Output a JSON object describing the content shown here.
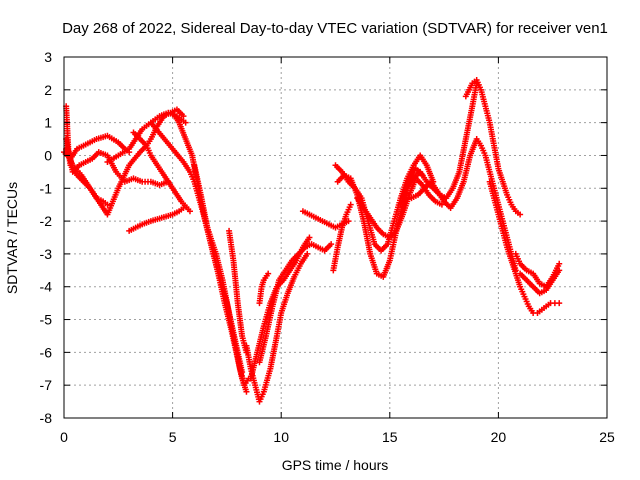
{
  "chart_data": {
    "type": "scatter",
    "title": "Day 268 of 2022, Sidereal Day-to-day VTEC variation (SDTVAR) for receiver ven1",
    "xlabel": "GPS time / hours",
    "ylabel": "SDTVAR / TECUs",
    "xlim": [
      0,
      25
    ],
    "ylim": [
      -8,
      3
    ],
    "xticks": [
      "0",
      "5",
      "10",
      "15",
      "20",
      "25"
    ],
    "yticks": [
      "3",
      "2",
      "1",
      "0",
      "-1",
      "-2",
      "-3",
      "-4",
      "-5",
      "-6",
      "-7",
      "-8"
    ],
    "xtick_values": [
      0,
      5,
      10,
      15,
      20,
      25
    ],
    "ytick_values": [
      3,
      2,
      1,
      0,
      -1,
      -2,
      -3,
      -4,
      -5,
      -6,
      -7,
      -8
    ],
    "grid": true,
    "marker": "+",
    "color": "#ff0000",
    "series": [
      {
        "x": [
          0.1,
          0.2,
          0.4,
          0.7,
          1.0,
          1.3,
          1.6,
          2.0,
          2.4,
          2.8,
          3.2,
          3.6,
          4.0,
          4.4,
          4.8
        ],
        "y": [
          1.5,
          0.2,
          -0.5,
          -0.3,
          -0.2,
          -0.1,
          0.1,
          0.0,
          -0.5,
          -0.8,
          -0.7,
          -0.8,
          -0.8,
          -0.9,
          -0.8
        ]
      },
      {
        "x": [
          0.1,
          0.3,
          0.6,
          0.9,
          1.2,
          1.5,
          1.8,
          2.0
        ],
        "y": [
          0.5,
          -0.3,
          -0.6,
          -0.8,
          -1.0,
          -1.3,
          -1.4,
          -1.5
        ]
      },
      {
        "x": [
          0.1,
          0.4,
          0.8,
          1.2,
          1.6,
          2.0,
          2.5,
          3.0,
          3.5,
          3.8,
          4.0,
          4.3,
          4.6,
          4.9,
          5.2,
          5.5
        ],
        "y": [
          0.2,
          -0.3,
          -0.6,
          -1.0,
          -1.4,
          -1.8,
          -1.0,
          -0.3,
          0.1,
          0.3,
          0.5,
          0.9,
          1.2,
          1.3,
          1.4,
          1.2
        ]
      },
      {
        "x": [
          0.0,
          0.3,
          0.6,
          0.9,
          1.2,
          1.5,
          2.0,
          2.5,
          2.8,
          3.0
        ],
        "y": [
          0.1,
          -0.1,
          0.2,
          0.3,
          0.4,
          0.5,
          0.6,
          0.4,
          0.2,
          0.1
        ]
      },
      {
        "x": [
          2.0,
          2.5,
          3.0,
          3.3,
          3.6,
          4.0,
          4.4,
          4.8,
          5.2,
          5.6
        ],
        "y": [
          -0.2,
          0.0,
          0.2,
          0.5,
          0.8,
          1.0,
          1.2,
          1.3,
          1.2,
          1.0
        ]
      },
      {
        "x": [
          3.0,
          3.3,
          3.6,
          4.0,
          4.5,
          5.0,
          5.3,
          5.5
        ],
        "y": [
          -2.3,
          -2.2,
          -2.1,
          -2.0,
          -1.9,
          -1.8,
          -1.7,
          -1.6
        ]
      },
      {
        "x": [
          3.2,
          3.5,
          3.8,
          4.0,
          4.3,
          4.6,
          5.0,
          5.4,
          5.8
        ],
        "y": [
          0.7,
          0.5,
          0.3,
          0.0,
          -0.3,
          -0.6,
          -1.0,
          -1.4,
          -1.7
        ]
      },
      {
        "x": [
          4.0,
          4.5,
          5.0,
          5.5,
          5.8,
          6.0,
          6.3,
          6.6,
          7.0,
          7.3,
          7.6,
          7.9,
          8.1,
          8.3,
          8.5
        ],
        "y": [
          1.0,
          0.6,
          0.2,
          -0.2,
          -0.5,
          -0.8,
          -1.5,
          -2.2,
          -3.0,
          -3.8,
          -4.8,
          -5.8,
          -6.5,
          -7.0,
          -6.8
        ]
      },
      {
        "x": [
          5.0,
          5.3,
          5.6,
          5.9,
          6.2,
          6.5,
          6.8,
          7.1,
          7.4,
          7.7,
          8.0,
          8.2,
          8.4
        ],
        "y": [
          1.3,
          1.0,
          0.5,
          0.0,
          -1.0,
          -2.0,
          -2.8,
          -3.6,
          -4.5,
          -5.3,
          -6.2,
          -6.8,
          -7.2
        ]
      },
      {
        "x": [
          6.0,
          6.3,
          6.6,
          6.9,
          7.2,
          7.5,
          7.8,
          8.0,
          8.2
        ],
        "y": [
          -0.3,
          -1.2,
          -2.2,
          -3.0,
          -3.8,
          -4.5,
          -5.4,
          -6.0,
          -6.6
        ]
      },
      {
        "x": [
          7.6,
          7.8,
          8.0,
          8.2,
          8.4
        ],
        "y": [
          -2.3,
          -3.2,
          -4.5,
          -5.5,
          -6.0
        ]
      },
      {
        "x": [
          8.4,
          8.6,
          8.8,
          9.0,
          9.2,
          9.5,
          9.8,
          10.0,
          10.3,
          10.6,
          10.9,
          11.2
        ],
        "y": [
          -5.8,
          -6.5,
          -7.0,
          -7.5,
          -7.2,
          -6.5,
          -5.5,
          -4.8,
          -4.2,
          -3.7,
          -3.3,
          -3.0
        ]
      },
      {
        "x": [
          8.6,
          8.9,
          9.2,
          9.5,
          9.8,
          10.1,
          10.4,
          10.7,
          11.0,
          11.3
        ],
        "y": [
          -6.8,
          -6.0,
          -5.2,
          -4.5,
          -4.0,
          -3.8,
          -3.5,
          -3.2,
          -2.8,
          -2.5
        ]
      },
      {
        "x": [
          9.0,
          9.3,
          9.6,
          9.9,
          10.2,
          10.5,
          10.8,
          11.1,
          11.4,
          11.7,
          12.0,
          12.3
        ],
        "y": [
          -6.3,
          -5.5,
          -4.6,
          -3.8,
          -3.5,
          -3.2,
          -3.0,
          -2.8,
          -2.7,
          -2.8,
          -2.9,
          -2.7
        ]
      },
      {
        "x": [
          9.0,
          9.1,
          9.2,
          9.4
        ],
        "y": [
          -4.5,
          -4.0,
          -3.8,
          -3.6
        ]
      },
      {
        "x": [
          11.0,
          11.3,
          11.6,
          11.9,
          12.2,
          12.5,
          12.8,
          13.1
        ],
        "y": [
          -1.7,
          -1.8,
          -1.9,
          -2.0,
          -2.1,
          -2.2,
          -2.1,
          -2.0
        ]
      },
      {
        "x": [
          12.5,
          12.8,
          13.1,
          13.4,
          13.7,
          14.0,
          14.3,
          14.6,
          14.9,
          15.2,
          15.5,
          15.8,
          16.1,
          16.4,
          16.7,
          17.0
        ],
        "y": [
          -0.3,
          -0.5,
          -0.8,
          -1.0,
          -1.3,
          -2.0,
          -2.7,
          -2.9,
          -2.7,
          -2.0,
          -1.3,
          -0.7,
          -0.3,
          0.0,
          -0.3,
          -0.8
        ]
      },
      {
        "x": [
          12.6,
          12.9,
          13.2,
          13.5,
          13.8,
          14.1,
          14.4,
          14.7,
          15.0,
          15.3,
          15.6,
          15.9,
          16.2,
          16.5
        ],
        "y": [
          -0.8,
          -0.6,
          -0.7,
          -1.2,
          -2.0,
          -3.0,
          -3.6,
          -3.7,
          -3.2,
          -2.3,
          -1.5,
          -0.8,
          -0.4,
          -0.6
        ]
      },
      {
        "x": [
          12.4,
          12.6,
          12.8,
          13.0,
          13.2
        ],
        "y": [
          -3.5,
          -2.8,
          -2.2,
          -1.8,
          -1.5
        ]
      },
      {
        "x": [
          13.5,
          13.8,
          14.1,
          14.4,
          14.7,
          15.0,
          15.3,
          15.6,
          15.9,
          16.2,
          16.5,
          16.8,
          17.1,
          17.4
        ],
        "y": [
          -1.3,
          -1.6,
          -1.9,
          -2.2,
          -2.4,
          -2.5,
          -2.3,
          -1.8,
          -1.2,
          -0.7,
          -0.9,
          -1.2,
          -1.4,
          -1.5
        ]
      },
      {
        "x": [
          15.5,
          15.8,
          16.1,
          16.4,
          16.7,
          17.0,
          17.3,
          17.6,
          17.9,
          18.2,
          18.5,
          18.8,
          19.0
        ],
        "y": [
          -1.5,
          -1.0,
          -0.7,
          -0.5,
          -0.8,
          -1.0,
          -1.2,
          -1.3,
          -1.0,
          -0.5,
          0.5,
          1.5,
          2.2
        ]
      },
      {
        "x": [
          16.0,
          16.3,
          16.6,
          16.9,
          17.2,
          17.5,
          17.8,
          18.1,
          18.4,
          18.7,
          19.0,
          19.2,
          19.4,
          19.6,
          19.8,
          20.0,
          20.2,
          20.4,
          20.6,
          20.8
        ],
        "y": [
          -1.3,
          -1.2,
          -1.0,
          -0.8,
          -1.1,
          -1.4,
          -1.6,
          -1.3,
          -0.8,
          0.0,
          0.5,
          0.3,
          0.0,
          -0.5,
          -1.0,
          -1.5,
          -2.0,
          -2.5,
          -3.0,
          -3.5
        ]
      },
      {
        "x": [
          18.5,
          18.8,
          19.0,
          19.2,
          19.4,
          19.6,
          19.8,
          20.0,
          20.2,
          20.4,
          20.6,
          20.8,
          21.0
        ],
        "y": [
          1.8,
          2.2,
          2.3,
          2.0,
          1.5,
          1.0,
          0.3,
          -0.4,
          -0.8,
          -1.2,
          -1.5,
          -1.7,
          -1.8
        ]
      },
      {
        "x": [
          19.6,
          19.8,
          20.0,
          20.2,
          20.4,
          20.6,
          20.8,
          21.0,
          21.2,
          21.4,
          21.6,
          21.8,
          22.0,
          22.2,
          22.4,
          22.6,
          22.8
        ],
        "y": [
          -0.8,
          -1.3,
          -1.8,
          -2.3,
          -2.8,
          -3.2,
          -3.6,
          -4.0,
          -4.3,
          -4.6,
          -4.8,
          -4.8,
          -4.7,
          -4.6,
          -4.5,
          -4.5,
          -4.5
        ]
      },
      {
        "x": [
          20.8,
          21.0,
          21.3,
          21.6,
          21.9,
          22.2,
          22.5,
          22.8
        ],
        "y": [
          -3.0,
          -3.3,
          -3.5,
          -3.6,
          -3.9,
          -4.0,
          -3.7,
          -3.3
        ]
      },
      {
        "x": [
          21.0,
          21.3,
          21.6,
          21.9,
          22.2,
          22.5,
          22.8
        ],
        "y": [
          -3.6,
          -3.8,
          -4.0,
          -4.2,
          -4.1,
          -3.8,
          -3.5
        ]
      }
    ]
  }
}
